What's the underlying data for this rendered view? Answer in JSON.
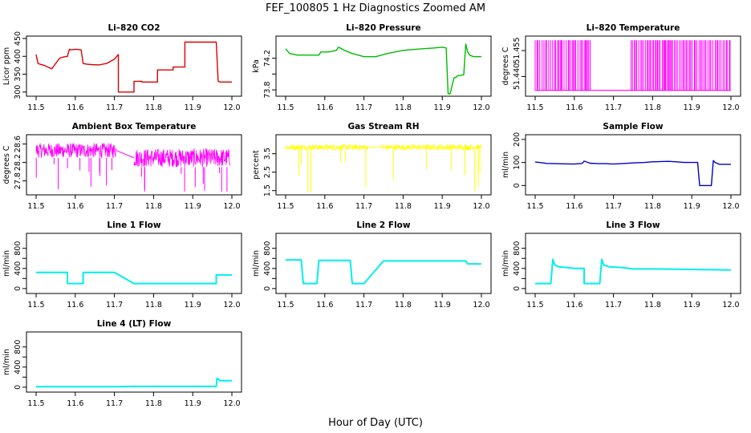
{
  "figure": {
    "title": "FEF_100805  1 Hz Diagnostics Zoomed AM",
    "xlabel": "Hour of Day (UTC)"
  },
  "chart_data": [
    {
      "type": "line",
      "title": "Li–820 CO2",
      "ylabel": "Licor ppm",
      "xlim": [
        11.5,
        12.0
      ],
      "ylim": [
        295,
        450
      ],
      "xticks": [
        "11.5",
        "11.6",
        "11.7",
        "11.8",
        "11.9",
        "12.0"
      ],
      "yticks": [
        300,
        350,
        400,
        450
      ],
      "series": [
        {
          "color": "#dd0000",
          "x": [
            11.5,
            11.505,
            11.51,
            11.52,
            11.53,
            11.54,
            11.55,
            11.56,
            11.57,
            11.58,
            11.585,
            11.59,
            11.6,
            11.61,
            11.615,
            11.62,
            11.63,
            11.64,
            11.66,
            11.68,
            11.7,
            11.71,
            11.71,
            11.75,
            11.75,
            11.77,
            11.77,
            11.81,
            11.81,
            11.85,
            11.85,
            11.88,
            11.88,
            11.96,
            11.965,
            11.97,
            11.98,
            12.0
          ],
          "y": [
            405,
            380,
            378,
            375,
            370,
            365,
            380,
            395,
            398,
            400,
            420,
            418,
            420,
            419,
            418,
            380,
            378,
            377,
            376,
            380,
            392,
            405,
            300,
            300,
            330,
            330,
            328,
            328,
            362,
            362,
            370,
            370,
            440,
            440,
            330,
            328,
            328,
            328
          ]
        }
      ]
    },
    {
      "type": "line",
      "title": "Li–820 Pressure",
      "ylabel": "kPa",
      "xlim": [
        11.5,
        12.0
      ],
      "ylim": [
        73.75,
        74.45
      ],
      "xticks": [
        "11.5",
        "11.6",
        "11.7",
        "11.8",
        "11.9",
        "12.0"
      ],
      "yticks": [
        73.8,
        74.0,
        74.2
      ],
      "ytick_labels": [
        "73.8",
        "",
        "74.2"
      ],
      "series": [
        {
          "color": "#00bb00",
          "x": [
            11.5,
            11.51,
            11.53,
            11.55,
            11.57,
            11.585,
            11.59,
            11.61,
            11.63,
            11.635,
            11.65,
            11.67,
            11.7,
            11.73,
            11.76,
            11.8,
            11.85,
            11.88,
            11.9,
            11.91,
            11.915,
            11.92,
            11.93,
            11.935,
            11.94,
            11.955,
            11.96,
            11.965,
            11.97,
            11.98,
            12.0
          ],
          "y": [
            74.32,
            74.26,
            74.24,
            74.24,
            74.24,
            74.24,
            74.28,
            74.28,
            74.3,
            74.34,
            74.3,
            74.26,
            74.22,
            74.22,
            74.26,
            74.3,
            74.32,
            74.33,
            74.34,
            74.33,
            73.75,
            73.75,
            73.95,
            73.96,
            73.98,
            73.99,
            74.38,
            74.28,
            74.24,
            74.22,
            74.22
          ]
        }
      ]
    },
    {
      "type": "line",
      "title": "Li–820 Temperature",
      "ylabel": "degrees C",
      "xlim": [
        11.5,
        12.0
      ],
      "ylim": [
        51.43,
        51.462
      ],
      "xticks": [
        "11.5",
        "11.6",
        "11.7",
        "11.8",
        "11.9",
        "12.0"
      ],
      "yticks": [
        51.44,
        51.455
      ],
      "ytick_labels": [
        "51.440",
        "51.455"
      ],
      "low": 51.432,
      "high": 51.461,
      "bursts": [
        [
          11.5,
          11.645
        ],
        [
          11.745,
          12.0
        ]
      ],
      "series": [
        {
          "color": "#ff00ff"
        }
      ]
    },
    {
      "type": "line",
      "title": "Ambient Box Temperature",
      "ylabel": "degrees C",
      "xlim": [
        11.5,
        12.0
      ],
      "ylim": [
        27.55,
        28.75
      ],
      "xticks": [
        "11.5",
        "11.6",
        "11.7",
        "11.8",
        "11.9",
        "12.0"
      ],
      "yticks": [
        27.8,
        28.2,
        28.6
      ],
      "ytick_labels": [
        "27.8",
        "28.2",
        "28.6"
      ],
      "band1": {
        "x": [
          11.5,
          11.705
        ],
        "lo": 28.3,
        "hi": 28.62
      },
      "band2": {
        "x": [
          11.75,
          11.995
        ],
        "lo": 28.1,
        "hi": 28.5
      },
      "series": [
        {
          "color": "#ff00ff"
        }
      ]
    },
    {
      "type": "line",
      "title": "Gas Stream RH",
      "ylabel": "percent",
      "xlim": [
        11.5,
        12.0
      ],
      "ylim": [
        1.4,
        4.4
      ],
      "xticks": [
        "11.5",
        "11.6",
        "11.7",
        "11.8",
        "11.9",
        "12.0"
      ],
      "yticks": [
        1.5,
        2.5,
        3.5
      ],
      "ytick_labels": [
        "1.5",
        "2.5",
        "3.5"
      ],
      "band1": {
        "x": [
          11.5,
          11.71
        ],
        "lo": 3.7,
        "hi": 4.0
      },
      "band2": {
        "x": [
          11.745,
          12.0
        ],
        "lo": 3.7,
        "hi": 4.0
      },
      "series": [
        {
          "color": "#ffff00"
        }
      ]
    },
    {
      "type": "line",
      "title": "Sample Flow",
      "ylabel": "ml/min",
      "xlim": [
        11.5,
        12.0
      ],
      "ylim": [
        -30,
        210
      ],
      "xticks": [
        "11.5",
        "11.6",
        "11.7",
        "11.8",
        "11.9",
        "12.0"
      ],
      "yticks": [
        0,
        100,
        200
      ],
      "series": [
        {
          "color": "#0000cc",
          "x": [
            11.5,
            11.51,
            11.53,
            11.55,
            11.57,
            11.6,
            11.62,
            11.625,
            11.64,
            11.66,
            11.68,
            11.7,
            11.72,
            11.75,
            11.78,
            11.8,
            11.84,
            11.86,
            11.88,
            11.915,
            11.92,
            11.95,
            11.955,
            11.96,
            11.97,
            11.98,
            12.0
          ],
          "y": [
            102,
            100,
            96,
            95,
            94,
            93,
            96,
            106,
            97,
            95,
            95,
            93,
            95,
            98,
            100,
            103,
            105,
            103,
            100,
            100,
            0,
            0,
            108,
            100,
            92,
            92,
            92
          ]
        }
      ]
    },
    {
      "type": "line",
      "title": "Line 1 Flow",
      "ylabel": "ml/min",
      "xlim": [
        11.5,
        12.0
      ],
      "ylim": [
        -50,
        1050
      ],
      "xticks": [
        "11.5",
        "11.6",
        "11.7",
        "11.8",
        "11.9",
        "12.0"
      ],
      "yticks": [
        0,
        200,
        400,
        600,
        800
      ],
      "ytick_labels": [
        "0",
        "",
        "400",
        "",
        "800"
      ],
      "series": [
        {
          "color": "#00eeee",
          "x": [
            11.5,
            11.58,
            11.58,
            11.62,
            11.62,
            11.7,
            11.75,
            11.96,
            11.96,
            12.0
          ],
          "y": [
            320,
            320,
            100,
            100,
            320,
            320,
            100,
            100,
            270,
            270
          ]
        }
      ]
    },
    {
      "type": "line",
      "title": "Line 2 Flow",
      "ylabel": "ml/min",
      "xlim": [
        11.5,
        12.0
      ],
      "ylim": [
        -50,
        1050
      ],
      "xticks": [
        "11.5",
        "11.6",
        "11.7",
        "11.8",
        "11.9",
        "12.0"
      ],
      "yticks": [
        0,
        200,
        400,
        600,
        800
      ],
      "ytick_labels": [
        "0",
        "",
        "400",
        "",
        "800"
      ],
      "series": [
        {
          "color": "#00eeee",
          "x": [
            11.5,
            11.54,
            11.545,
            11.58,
            11.585,
            11.665,
            11.67,
            11.7,
            11.75,
            11.96,
            11.965,
            12.0
          ],
          "y": [
            570,
            570,
            100,
            100,
            560,
            560,
            100,
            100,
            550,
            550,
            490,
            490
          ]
        }
      ]
    },
    {
      "type": "line",
      "title": "Line 3 Flow",
      "ylabel": "ml/min",
      "xlim": [
        11.5,
        12.0
      ],
      "ylim": [
        -50,
        1050
      ],
      "xticks": [
        "11.5",
        "11.6",
        "11.7",
        "11.8",
        "11.9",
        "12.0"
      ],
      "yticks": [
        0,
        200,
        400,
        600,
        800
      ],
      "ytick_labels": [
        "0",
        "",
        "400",
        "",
        "800"
      ],
      "series": [
        {
          "color": "#00eeee",
          "x": [
            11.5,
            11.54,
            11.545,
            11.55,
            11.56,
            11.58,
            11.6,
            11.625,
            11.625,
            11.665,
            11.67,
            11.675,
            11.69,
            11.72,
            11.75,
            11.8,
            11.9,
            12.0
          ],
          "y": [
            100,
            100,
            580,
            470,
            430,
            420,
            400,
            400,
            100,
            100,
            580,
            470,
            430,
            420,
            390,
            390,
            380,
            370
          ]
        }
      ]
    },
    {
      "type": "line",
      "title": "Line 4 (LT) Flow",
      "ylabel": "ml/min",
      "xlim": [
        11.5,
        12.0
      ],
      "ylim": [
        -50,
        1050
      ],
      "xticks": [
        "11.5",
        "11.6",
        "11.7",
        "11.8",
        "11.9",
        "12.0"
      ],
      "yticks": [
        0,
        200,
        400,
        600,
        800
      ],
      "ytick_labels": [
        "0",
        "",
        "400",
        "",
        "800"
      ],
      "series": [
        {
          "color": "#00eeee",
          "x": [
            11.5,
            11.7,
            11.75,
            11.9,
            11.96,
            11.962,
            11.97,
            12.0
          ],
          "y": [
            10,
            10,
            15,
            15,
            15,
            180,
            130,
            130
          ]
        }
      ]
    }
  ]
}
